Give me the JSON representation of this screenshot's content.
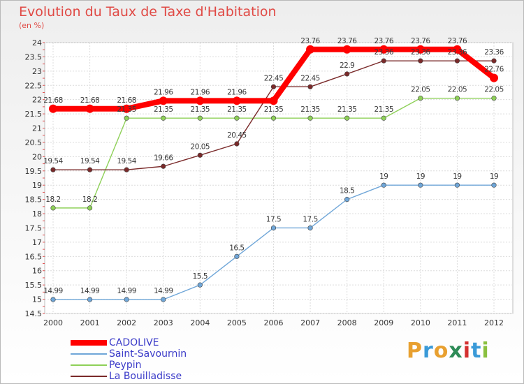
{
  "chart_data": {
    "type": "line",
    "title": "Evolution du Taux de Taxe d'Habitation",
    "subtitle": "(en %)",
    "categories": [
      "2000",
      "2001",
      "2002",
      "2003",
      "2004",
      "2005",
      "2006",
      "2007",
      "2008",
      "2009",
      "2010",
      "2011",
      "2012"
    ],
    "ylim": [
      14.5,
      24
    ],
    "yticks": [
      "14.5",
      "15",
      "15.5",
      "16",
      "16.5",
      "17",
      "17.5",
      "18",
      "18.5",
      "19",
      "19.5",
      "20",
      "20.5",
      "21",
      "21.5",
      "22",
      "22.5",
      "23",
      "23.5",
      "24"
    ],
    "grid": true,
    "series": [
      {
        "name": "CADOLIVE",
        "color": "#ff0000",
        "values": [
          21.68,
          21.68,
          21.68,
          21.96,
          21.96,
          21.96,
          21.96,
          23.76,
          23.76,
          23.76,
          23.76,
          23.76,
          22.76
        ],
        "labels": [
          "21.68",
          "21.68",
          "21.68",
          "21.96",
          "21.96",
          "21.96",
          "",
          "23.76",
          "23.76",
          "23.76",
          "23.76",
          "23.76",
          "22.76"
        ]
      },
      {
        "name": "Saint-Savournin",
        "color": "#6fa6d8",
        "values": [
          14.99,
          14.99,
          14.99,
          14.99,
          15.5,
          16.5,
          17.5,
          17.5,
          18.5,
          19,
          19,
          19,
          19
        ],
        "labels": [
          "14.99",
          "14.99",
          "14.99",
          "14.99",
          "15.5",
          "16.5",
          "17.5",
          "17.5",
          "18.5",
          "19",
          "19",
          "19",
          "19"
        ]
      },
      {
        "name": "Peypin",
        "color": "#8ed058",
        "values": [
          18.2,
          18.2,
          21.35,
          21.35,
          21.35,
          21.35,
          21.35,
          21.35,
          21.35,
          21.35,
          22.05,
          22.05,
          22.05
        ],
        "labels": [
          "18.2",
          "18.2",
          "21.35",
          "21.35",
          "21.35",
          "21.35",
          "21.35",
          "21.35",
          "21.35",
          "21.35",
          "22.05",
          "22.05",
          "22.05"
        ]
      },
      {
        "name": "La Bouilladisse",
        "color": "#7a2a2a",
        "values": [
          19.54,
          19.54,
          19.54,
          19.66,
          20.05,
          20.45,
          22.45,
          22.45,
          22.9,
          23.36,
          23.36,
          23.36,
          23.36
        ],
        "labels": [
          "19.54",
          "19.54",
          "19.54",
          "19.66",
          "20.05",
          "20.45",
          "22.45",
          "22.45",
          "22.9",
          "23.36",
          "23.36",
          "23.36",
          "23.36"
        ]
      }
    ],
    "legend": "bottom-left"
  },
  "logo": {
    "letters": [
      "P",
      "r",
      "o",
      "x",
      "i",
      "t",
      "i"
    ],
    "colors": [
      "#e8a030",
      "#3a9ad8",
      "#e8a030",
      "#2e8b57",
      "#d43030",
      "#3a9ad8",
      "#8ac040"
    ]
  }
}
